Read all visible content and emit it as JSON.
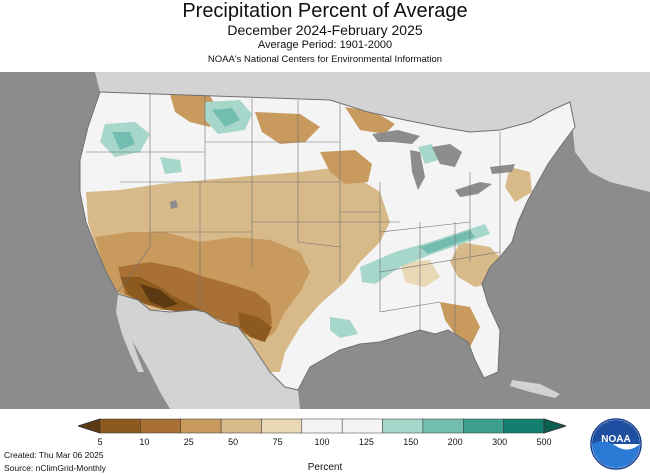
{
  "header": {
    "title": "Precipitation Percent of Average",
    "subtitle": "December 2024-February 2025",
    "period": "Average Period: 1901-2000",
    "source_org": "NOAA's National Centers for Environmental Information"
  },
  "legend": {
    "labels": [
      "5",
      "10",
      "25",
      "50",
      "75",
      "100",
      "125",
      "150",
      "200",
      "300",
      "500"
    ],
    "colors": [
      "#8c5a1e",
      "#a97035",
      "#c89a5e",
      "#d8ba8a",
      "#e9d8b5",
      "#f4f4f4",
      "#f4f4f4",
      "#a7d6cb",
      "#72bdb0",
      "#3d9f90",
      "#137f6f"
    ],
    "endcap_low": "#5c3a12",
    "endcap_high": "#0c5f52",
    "unit": "Percent"
  },
  "footer": {
    "created": "Created: Thu Mar 06 2025",
    "source": "Source: nClimGrid-Monthly"
  },
  "logo": {
    "text": "NOAA"
  },
  "colors": {
    "ocean": "#8c8c8c",
    "neighbor_land": "#d3d3d3",
    "us_base": "#f4f4f4",
    "state_border": "#707070"
  }
}
